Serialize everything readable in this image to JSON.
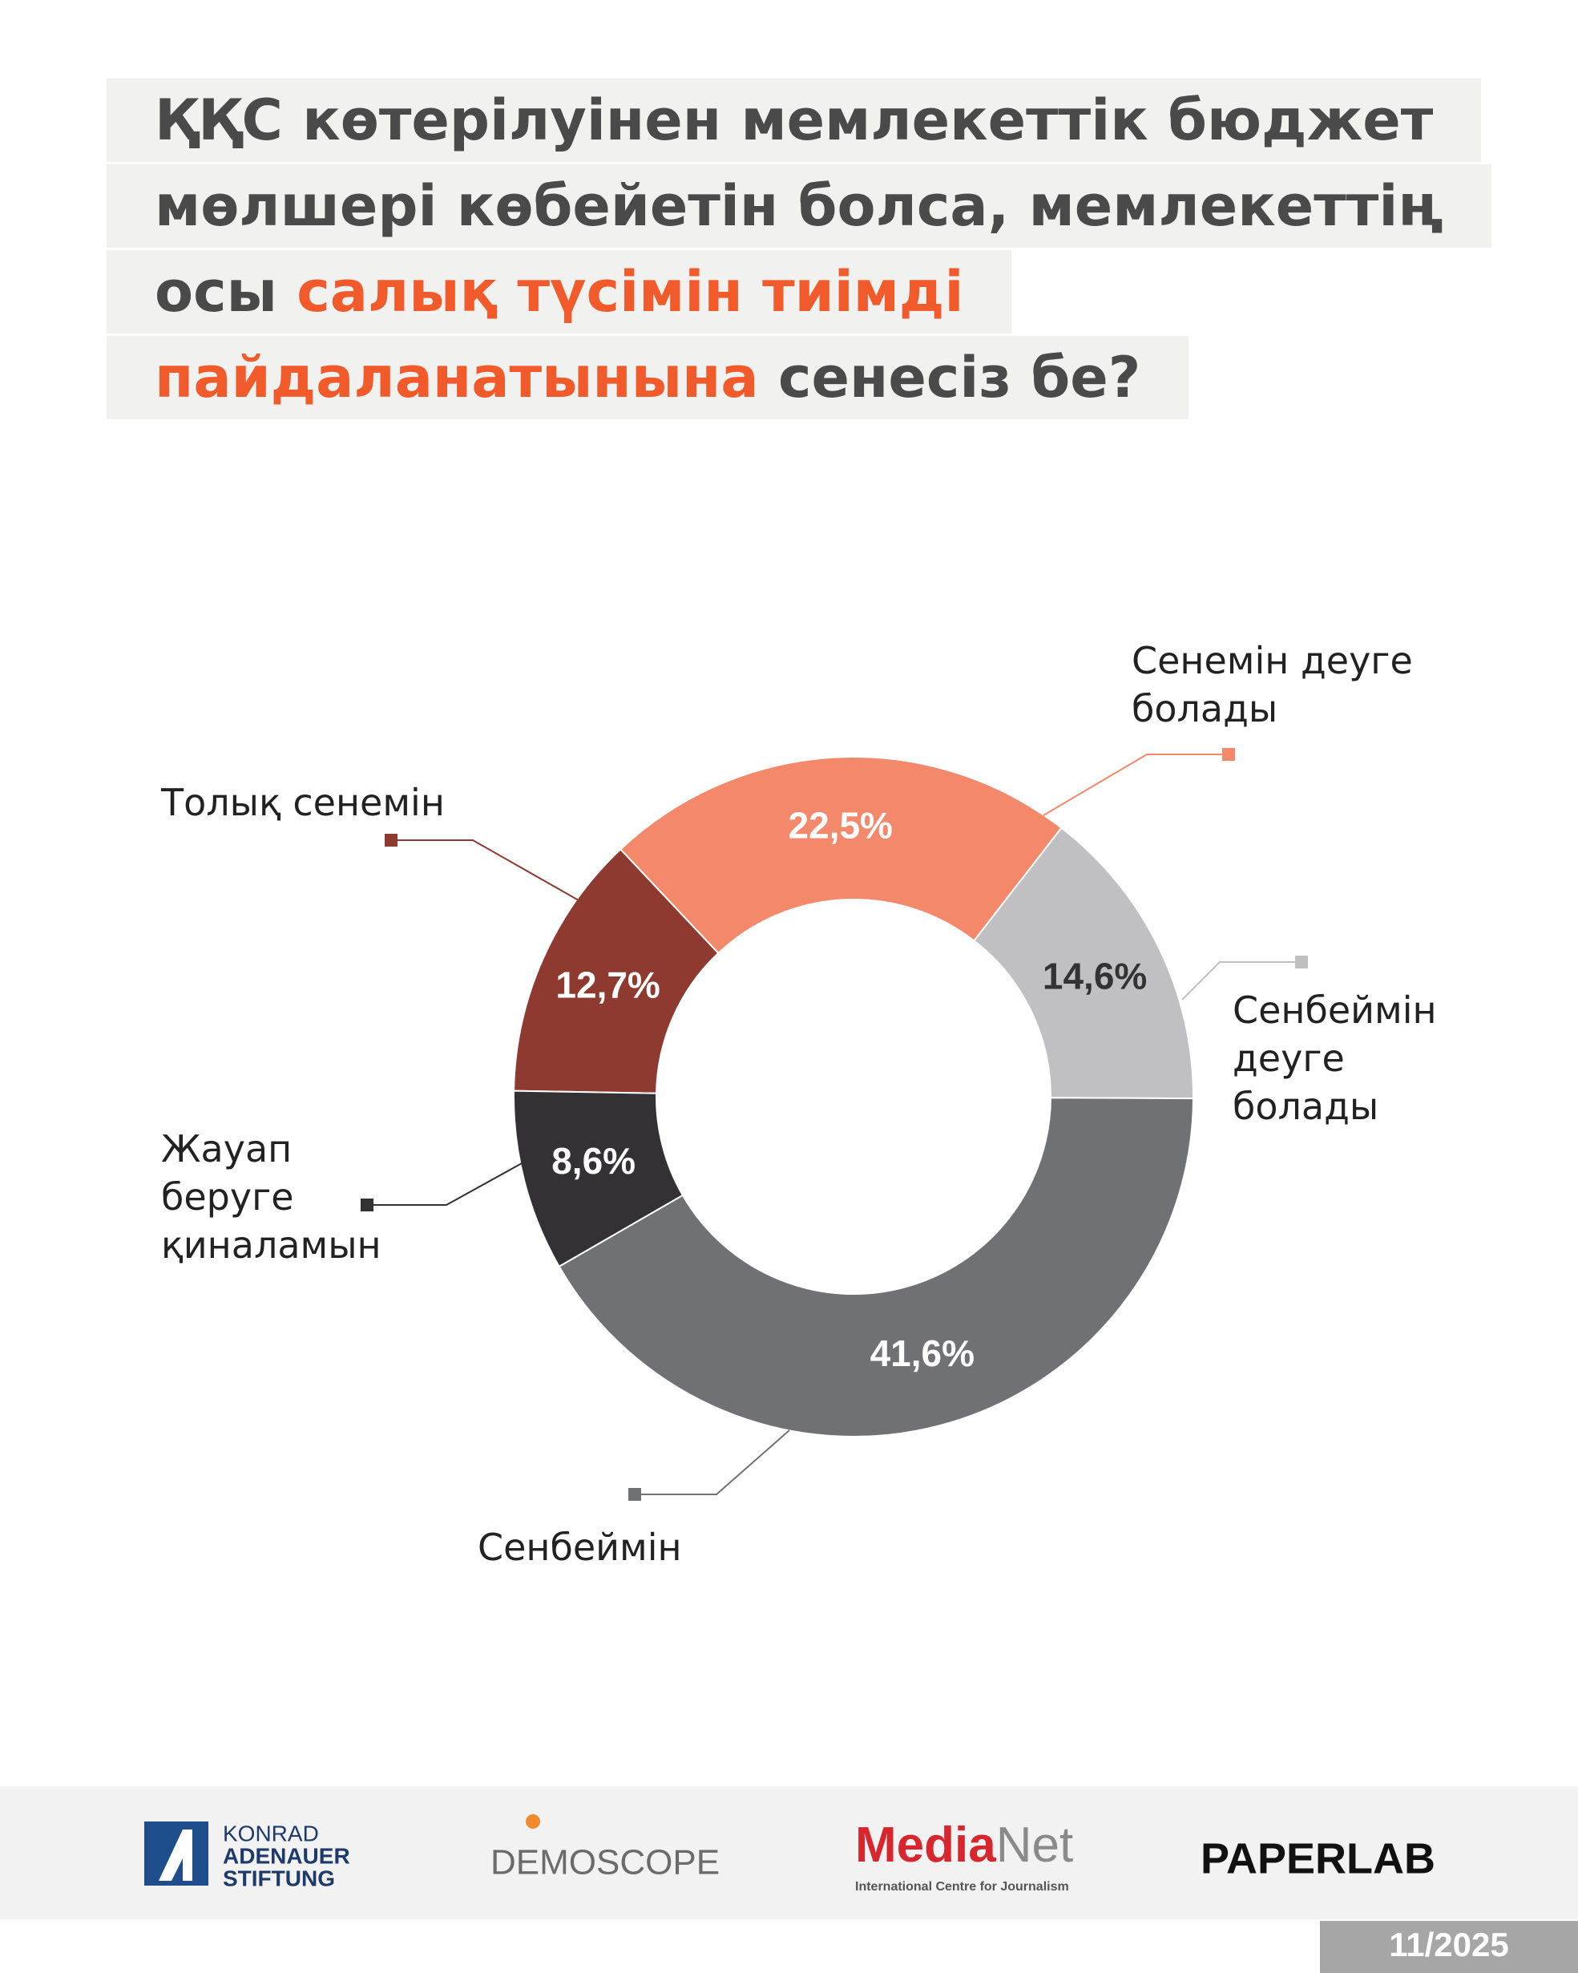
{
  "chart_data": {
    "type": "pie",
    "donut": true,
    "title_start": "ҚҚС көтерілуінен мемлекеттік бюджет мөлшері көбейетін болса, мемлекеттің осы",
    "title_highlight": "салық түсімін тиімді пайдаланатынына",
    "title_end": "сенесіз бе?",
    "categories": [
      "Толық сенемін",
      "Сенемін деуге болады",
      "Сенбеймін деуге болады",
      "Сенбеймін",
      "Жауап беруге қиналамын"
    ],
    "values": [
      12.7,
      22.5,
      14.6,
      41.6,
      8.6
    ],
    "value_labels": [
      "12,7%",
      "22,5%",
      "14,6%",
      "41,6%",
      "8,6%"
    ],
    "colors": [
      "#8f3a31",
      "#f4886b",
      "#c0c0c2",
      "#707175",
      "#333133"
    ]
  },
  "footer": {
    "kas_1": "KONRAD",
    "kas_2": "ADENAUER",
    "kas_3": "STIFTUNG",
    "demoscope": "DEMOSCOPE",
    "medianet_1": "Media",
    "medianet_2": "Net",
    "medianet_sub": "International Centre for Journalism",
    "paperlab": "PAPERLAB",
    "issue": "11/2025"
  }
}
